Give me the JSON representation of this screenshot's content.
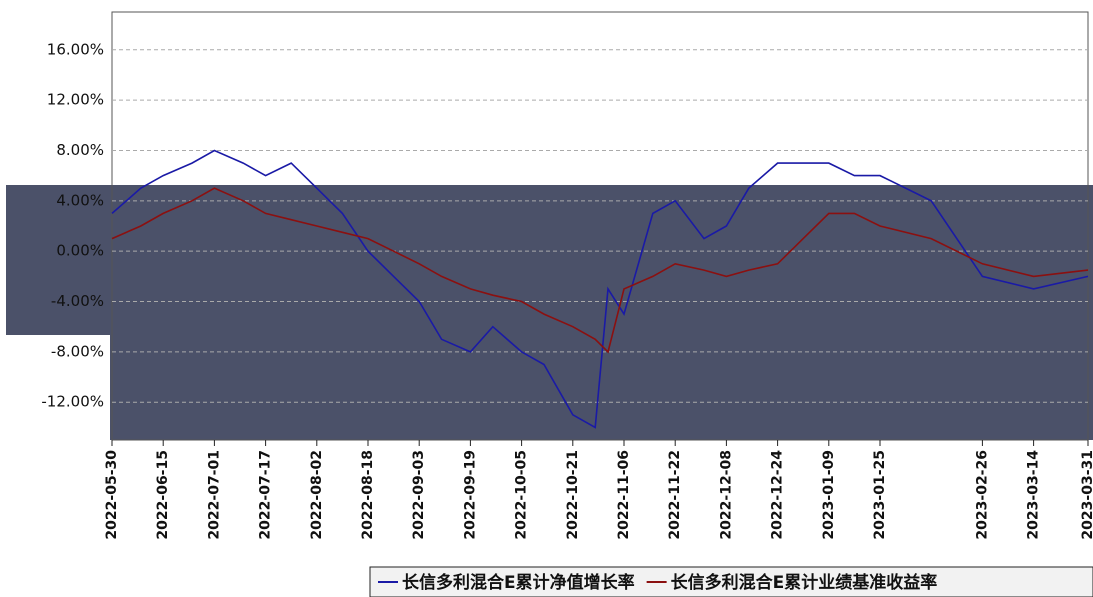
{
  "chart_data": {
    "type": "line",
    "x": [
      "2022-05-30",
      "2022-06-08",
      "2022-06-15",
      "2022-06-24",
      "2022-07-01",
      "2022-07-10",
      "2022-07-17",
      "2022-07-25",
      "2022-08-02",
      "2022-08-10",
      "2022-08-18",
      "2022-08-26",
      "2022-09-03",
      "2022-09-10",
      "2022-09-19",
      "2022-09-26",
      "2022-10-05",
      "2022-10-12",
      "2022-10-21",
      "2022-10-28",
      "2022-11-01",
      "2022-11-06",
      "2022-11-15",
      "2022-11-22",
      "2022-12-01",
      "2022-12-08",
      "2022-12-15",
      "2022-12-24",
      "2023-01-01",
      "2023-01-09",
      "2023-01-17",
      "2023-01-25",
      "2023-02-10",
      "2023-02-26",
      "2023-03-14",
      "2023-03-31"
    ],
    "series": [
      {
        "name": "长信多利混合E累计净值增长率",
        "color": "#1a1aa6",
        "values": [
          3,
          5,
          6,
          7,
          8,
          7,
          6,
          7,
          5,
          3,
          0,
          -2,
          -4,
          -7,
          -8,
          -6,
          -8,
          -9,
          -13,
          -14,
          -3,
          -5,
          3,
          4,
          1,
          2,
          5,
          7,
          7,
          7,
          6,
          6,
          4,
          -2,
          -3,
          -2
        ]
      },
      {
        "name": "长信多利混合E累计业绩基准收益率",
        "color": "#8b1010",
        "values": [
          1,
          2,
          3,
          4,
          5,
          4,
          3,
          2.5,
          2,
          1.5,
          1,
          0,
          -1,
          -2,
          -3,
          -3.5,
          -4,
          -5,
          -6,
          -7,
          -8,
          -3,
          -2,
          -1,
          -1.5,
          -2,
          -1.5,
          -1,
          1,
          3,
          3,
          2,
          1,
          -1,
          -2,
          -1.5
        ]
      }
    ],
    "xlim": [
      "2022-05-30",
      "2023-03-31"
    ],
    "xticks": [
      "2022-05-30",
      "2022-06-15",
      "2022-07-01",
      "2022-07-17",
      "2022-08-02",
      "2022-08-18",
      "2022-09-03",
      "2022-09-19",
      "2022-10-05",
      "2022-10-21",
      "2022-11-06",
      "2022-11-22",
      "2022-12-08",
      "2022-12-24",
      "2023-01-09",
      "2023-01-25",
      "2023-02-26",
      "2023-03-14",
      "2023-03-31"
    ],
    "ylim": [
      -15,
      19
    ],
    "yticks": [
      {
        "value": -12,
        "label": "-12.00%"
      },
      {
        "value": -8,
        "label": "-8.00%"
      },
      {
        "value": -4,
        "label": "-4.00%"
      },
      {
        "value": 0,
        "label": "0.00%"
      },
      {
        "value": 4,
        "label": "4.00%"
      },
      {
        "value": 8,
        "label": "8.00%"
      },
      {
        "value": 12,
        "label": "12.00%"
      },
      {
        "value": 16,
        "label": "16.00%"
      }
    ],
    "grid": true
  }
}
